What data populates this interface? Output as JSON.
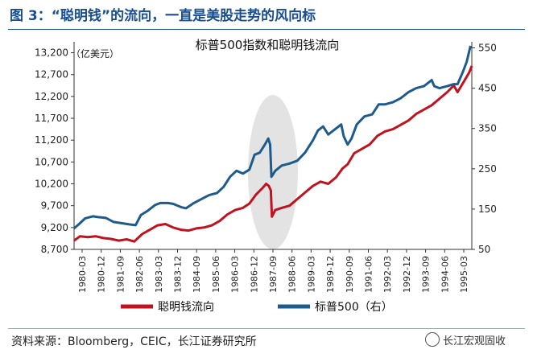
{
  "figure": {
    "label": "图 3：",
    "title": "“聪明钱”的流向，一直是美股走势的风向标"
  },
  "source": "资料来源：Bloomberg，CEIC，长江证券研究所",
  "watermark": "长江宏观固收",
  "chart_data": {
    "type": "line",
    "title": "标普500指数和聪明钱流向",
    "left_axis_unit": "（亿美元）",
    "ylim_left": [
      8700,
      13450
    ],
    "ylim_right": [
      50,
      565
    ],
    "y_ticks_left": [
      8700,
      9200,
      9700,
      10200,
      10700,
      11200,
      11700,
      12200,
      12700,
      13200
    ],
    "y_ticks_left_labels": [
      "8,700",
      "9,200",
      "9,700",
      "10,200",
      "10,700",
      "11,200",
      "11,700",
      "12,200",
      "12,700",
      "13,200"
    ],
    "y_ticks_right": [
      50,
      150,
      250,
      350,
      450,
      550
    ],
    "x_ticks": [
      "1980-03",
      "1980-12",
      "1981-09",
      "1982-06",
      "1983-03",
      "1983-12",
      "1984-09",
      "1985-06",
      "1986-03",
      "1986-12",
      "1987-09",
      "1988-06",
      "1989-03",
      "1989-12",
      "1990-09",
      "1991-06",
      "1992-03",
      "1992-12",
      "1993-09",
      "1994-06",
      "1995-03"
    ],
    "x_range": [
      1980.17,
      1995.55
    ],
    "legend_position": "bottom",
    "series": [
      {
        "name": "聪明钱流向",
        "axis": "left",
        "color": "#c0121f",
        "points": [
          [
            1980.17,
            8900
          ],
          [
            1980.4,
            9000
          ],
          [
            1980.7,
            8980
          ],
          [
            1981.0,
            9000
          ],
          [
            1981.3,
            8960
          ],
          [
            1981.6,
            8940
          ],
          [
            1981.9,
            8900
          ],
          [
            1982.2,
            8930
          ],
          [
            1982.5,
            8880
          ],
          [
            1982.8,
            9050
          ],
          [
            1983.1,
            9150
          ],
          [
            1983.4,
            9250
          ],
          [
            1983.7,
            9280
          ],
          [
            1984.0,
            9200
          ],
          [
            1984.3,
            9150
          ],
          [
            1984.6,
            9130
          ],
          [
            1984.9,
            9180
          ],
          [
            1985.2,
            9200
          ],
          [
            1985.5,
            9250
          ],
          [
            1985.8,
            9350
          ],
          [
            1986.1,
            9500
          ],
          [
            1986.4,
            9600
          ],
          [
            1986.7,
            9650
          ],
          [
            1986.95,
            9750
          ],
          [
            1987.2,
            9950
          ],
          [
            1987.45,
            10100
          ],
          [
            1987.6,
            10200
          ],
          [
            1987.7,
            10150
          ],
          [
            1987.78,
            10050
          ],
          [
            1987.82,
            9450
          ],
          [
            1987.95,
            9600
          ],
          [
            1988.2,
            9650
          ],
          [
            1988.5,
            9700
          ],
          [
            1988.8,
            9850
          ],
          [
            1989.1,
            10000
          ],
          [
            1989.4,
            10150
          ],
          [
            1989.7,
            10250
          ],
          [
            1990.0,
            10200
          ],
          [
            1990.3,
            10350
          ],
          [
            1990.55,
            10550
          ],
          [
            1990.75,
            10650
          ],
          [
            1991.0,
            10900
          ],
          [
            1991.3,
            11000
          ],
          [
            1991.6,
            11100
          ],
          [
            1991.9,
            11300
          ],
          [
            1992.2,
            11400
          ],
          [
            1992.5,
            11450
          ],
          [
            1992.8,
            11550
          ],
          [
            1993.1,
            11650
          ],
          [
            1993.4,
            11800
          ],
          [
            1993.7,
            11900
          ],
          [
            1994.0,
            12000
          ],
          [
            1994.3,
            12150
          ],
          [
            1994.6,
            12300
          ],
          [
            1994.85,
            12450
          ],
          [
            1995.0,
            12300
          ],
          [
            1995.2,
            12500
          ],
          [
            1995.35,
            12650
          ],
          [
            1995.45,
            12750
          ],
          [
            1995.55,
            12900
          ]
        ]
      },
      {
        "name": "标普500（右）",
        "axis": "right",
        "color": "#1f5b8a",
        "points": [
          [
            1980.17,
            102
          ],
          [
            1980.35,
            112
          ],
          [
            1980.6,
            127
          ],
          [
            1980.9,
            132
          ],
          [
            1981.1,
            130
          ],
          [
            1981.4,
            128
          ],
          [
            1981.7,
            118
          ],
          [
            1982.0,
            115
          ],
          [
            1982.3,
            112
          ],
          [
            1982.55,
            110
          ],
          [
            1982.75,
            135
          ],
          [
            1983.0,
            145
          ],
          [
            1983.3,
            160
          ],
          [
            1983.5,
            165
          ],
          [
            1983.8,
            165
          ],
          [
            1984.0,
            163
          ],
          [
            1984.3,
            155
          ],
          [
            1984.5,
            152
          ],
          [
            1984.8,
            165
          ],
          [
            1985.1,
            175
          ],
          [
            1985.4,
            185
          ],
          [
            1985.7,
            190
          ],
          [
            1985.95,
            205
          ],
          [
            1986.2,
            230
          ],
          [
            1986.45,
            245
          ],
          [
            1986.7,
            238
          ],
          [
            1986.95,
            248
          ],
          [
            1987.15,
            285
          ],
          [
            1987.35,
            290
          ],
          [
            1987.55,
            310
          ],
          [
            1987.68,
            325
          ],
          [
            1987.75,
            310
          ],
          [
            1987.8,
            230
          ],
          [
            1987.95,
            245
          ],
          [
            1988.2,
            258
          ],
          [
            1988.5,
            263
          ],
          [
            1988.8,
            270
          ],
          [
            1989.1,
            290
          ],
          [
            1989.4,
            320
          ],
          [
            1989.6,
            345
          ],
          [
            1989.8,
            355
          ],
          [
            1990.0,
            335
          ],
          [
            1990.3,
            350
          ],
          [
            1990.5,
            360
          ],
          [
            1990.6,
            330
          ],
          [
            1990.75,
            310
          ],
          [
            1990.9,
            325
          ],
          [
            1991.1,
            360
          ],
          [
            1991.4,
            380
          ],
          [
            1991.7,
            385
          ],
          [
            1991.95,
            410
          ],
          [
            1992.2,
            410
          ],
          [
            1992.5,
            415
          ],
          [
            1992.8,
            425
          ],
          [
            1993.1,
            440
          ],
          [
            1993.4,
            450
          ],
          [
            1993.7,
            455
          ],
          [
            1994.0,
            470
          ],
          [
            1994.1,
            455
          ],
          [
            1994.3,
            450
          ],
          [
            1994.6,
            455
          ],
          [
            1994.85,
            460
          ],
          [
            1995.0,
            460
          ],
          [
            1995.2,
            490
          ],
          [
            1995.35,
            515
          ],
          [
            1995.5,
            555
          ]
        ]
      }
    ]
  }
}
